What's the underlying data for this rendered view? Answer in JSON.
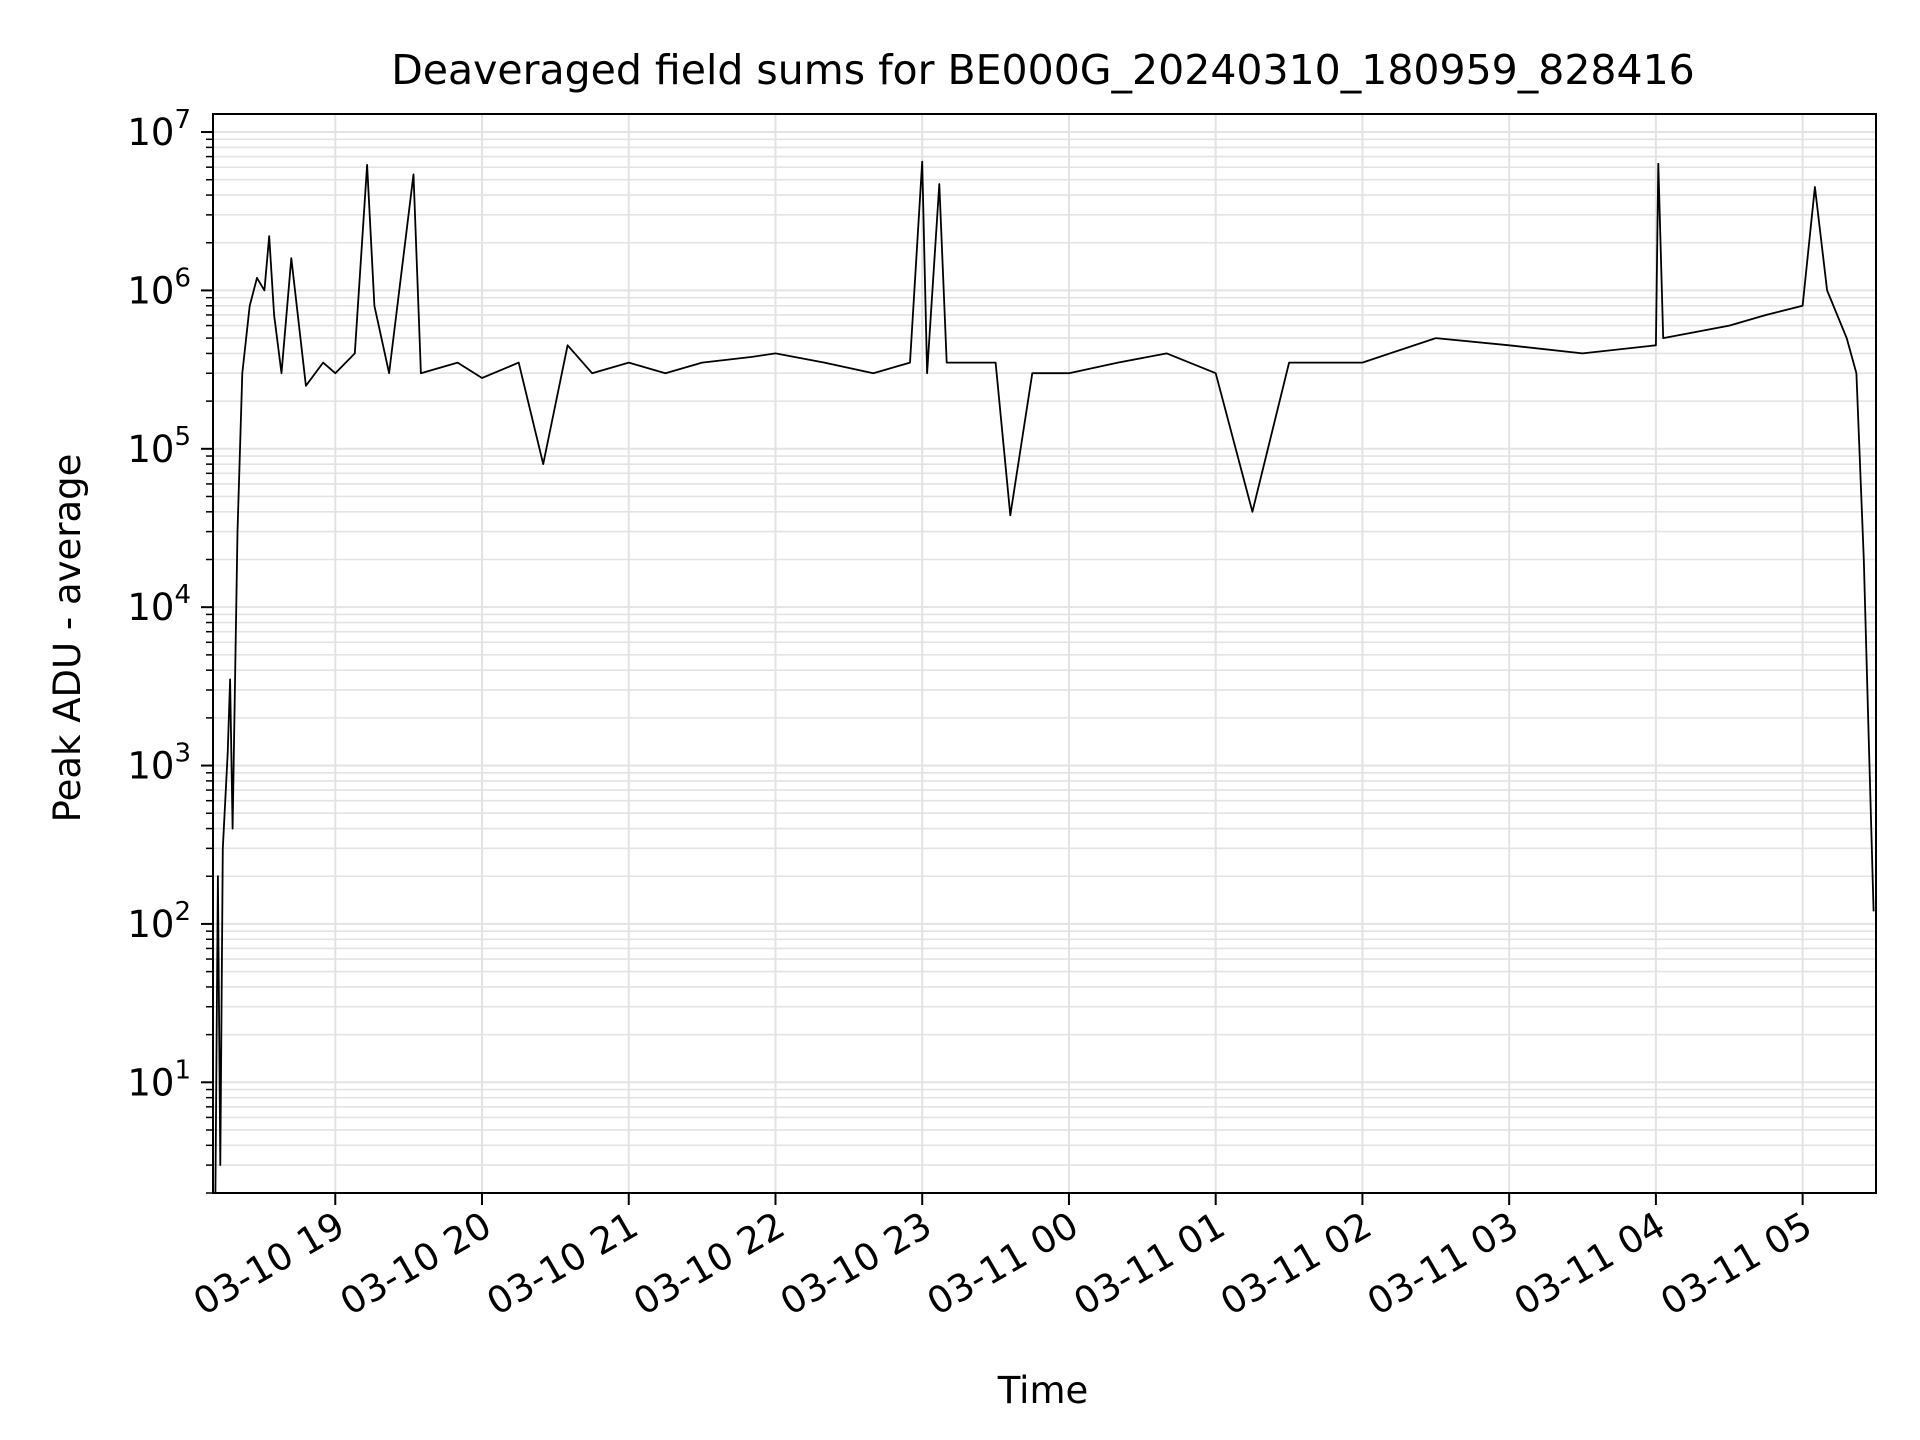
{
  "chart_data": {
    "type": "line",
    "title": "Deaveraged field sums for BE000G_20240310_180959_828416",
    "xlabel": "Time",
    "ylabel": "Peak ADU - average",
    "yscale": "log",
    "ylim": [
      2,
      13000000
    ],
    "xlim": [
      "2024-03-10 18:10",
      "2024-03-11 05:30"
    ],
    "grid": true,
    "x_ticks": [
      {
        "t": "2024-03-10 19:00",
        "label": "03-10 19"
      },
      {
        "t": "2024-03-10 20:00",
        "label": "03-10 20"
      },
      {
        "t": "2024-03-10 21:00",
        "label": "03-10 21"
      },
      {
        "t": "2024-03-10 22:00",
        "label": "03-10 22"
      },
      {
        "t": "2024-03-10 23:00",
        "label": "03-10 23"
      },
      {
        "t": "2024-03-11 00:00",
        "label": "03-11 00"
      },
      {
        "t": "2024-03-11 01:00",
        "label": "03-11 01"
      },
      {
        "t": "2024-03-11 02:00",
        "label": "03-11 02"
      },
      {
        "t": "2024-03-11 03:00",
        "label": "03-11 03"
      },
      {
        "t": "2024-03-11 04:00",
        "label": "03-11 04"
      },
      {
        "t": "2024-03-11 05:00",
        "label": "03-11 05"
      }
    ],
    "y_ticks": [
      {
        "value": 10,
        "base": "10",
        "exp": "1"
      },
      {
        "value": 100,
        "base": "10",
        "exp": "2"
      },
      {
        "value": 1000,
        "base": "10",
        "exp": "3"
      },
      {
        "value": 10000,
        "base": "10",
        "exp": "4"
      },
      {
        "value": 100000,
        "base": "10",
        "exp": "5"
      },
      {
        "value": 1000000,
        "base": "10",
        "exp": "6"
      },
      {
        "value": 10000000,
        "base": "10",
        "exp": "7"
      }
    ],
    "series": [
      {
        "color": "#000000",
        "points": [
          [
            "2024-03-10 18:11",
            2
          ],
          [
            "2024-03-10 18:12",
            200
          ],
          [
            "2024-03-10 18:13",
            3
          ],
          [
            "2024-03-10 18:14",
            300
          ],
          [
            "2024-03-10 18:16",
            1200
          ],
          [
            "2024-03-10 18:17",
            3500
          ],
          [
            "2024-03-10 18:18",
            400
          ],
          [
            "2024-03-10 18:20",
            30000
          ],
          [
            "2024-03-10 18:22",
            300000
          ],
          [
            "2024-03-10 18:25",
            800000
          ],
          [
            "2024-03-10 18:28",
            1200000
          ],
          [
            "2024-03-10 18:31",
            1000000
          ],
          [
            "2024-03-10 18:33",
            2200000
          ],
          [
            "2024-03-10 18:35",
            700000
          ],
          [
            "2024-03-10 18:38",
            300000
          ],
          [
            "2024-03-10 18:42",
            1600000
          ],
          [
            "2024-03-10 18:48",
            250000
          ],
          [
            "2024-03-10 18:55",
            350000
          ],
          [
            "2024-03-10 19:00",
            300000
          ],
          [
            "2024-03-10 19:08",
            400000
          ],
          [
            "2024-03-10 19:13",
            6200000
          ],
          [
            "2024-03-10 19:16",
            800000
          ],
          [
            "2024-03-10 19:22",
            300000
          ],
          [
            "2024-03-10 19:32",
            5400000
          ],
          [
            "2024-03-10 19:35",
            300000
          ],
          [
            "2024-03-10 19:50",
            350000
          ],
          [
            "2024-03-10 20:00",
            280000
          ],
          [
            "2024-03-10 20:15",
            350000
          ],
          [
            "2024-03-10 20:25",
            80000
          ],
          [
            "2024-03-10 20:35",
            450000
          ],
          [
            "2024-03-10 20:45",
            300000
          ],
          [
            "2024-03-10 21:00",
            350000
          ],
          [
            "2024-03-10 21:15",
            300000
          ],
          [
            "2024-03-10 21:30",
            350000
          ],
          [
            "2024-03-10 21:50",
            380000
          ],
          [
            "2024-03-10 22:00",
            400000
          ],
          [
            "2024-03-10 22:20",
            350000
          ],
          [
            "2024-03-10 22:40",
            300000
          ],
          [
            "2024-03-10 22:55",
            350000
          ],
          [
            "2024-03-10 23:00",
            6500000
          ],
          [
            "2024-03-10 23:02",
            300000
          ],
          [
            "2024-03-10 23:07",
            4700000
          ],
          [
            "2024-03-10 23:10",
            350000
          ],
          [
            "2024-03-10 23:30",
            350000
          ],
          [
            "2024-03-10 23:36",
            38000
          ],
          [
            "2024-03-10 23:45",
            300000
          ],
          [
            "2024-03-11 00:00",
            300000
          ],
          [
            "2024-03-11 00:20",
            350000
          ],
          [
            "2024-03-11 00:40",
            400000
          ],
          [
            "2024-03-11 01:00",
            300000
          ],
          [
            "2024-03-11 01:15",
            40000
          ],
          [
            "2024-03-11 01:30",
            350000
          ],
          [
            "2024-03-11 02:00",
            350000
          ],
          [
            "2024-03-11 02:30",
            500000
          ],
          [
            "2024-03-11 03:00",
            450000
          ],
          [
            "2024-03-11 03:30",
            400000
          ],
          [
            "2024-03-11 04:00",
            450000
          ],
          [
            "2024-03-11 04:01",
            6300000
          ],
          [
            "2024-03-11 04:03",
            500000
          ],
          [
            "2024-03-11 04:30",
            600000
          ],
          [
            "2024-03-11 04:45",
            700000
          ],
          [
            "2024-03-11 05:00",
            800000
          ],
          [
            "2024-03-11 05:05",
            4500000
          ],
          [
            "2024-03-11 05:10",
            1000000
          ],
          [
            "2024-03-11 05:18",
            500000
          ],
          [
            "2024-03-11 05:22",
            300000
          ],
          [
            "2024-03-11 05:25",
            20000
          ],
          [
            "2024-03-11 05:27",
            1500
          ],
          [
            "2024-03-11 05:29",
            120
          ]
        ]
      }
    ]
  }
}
